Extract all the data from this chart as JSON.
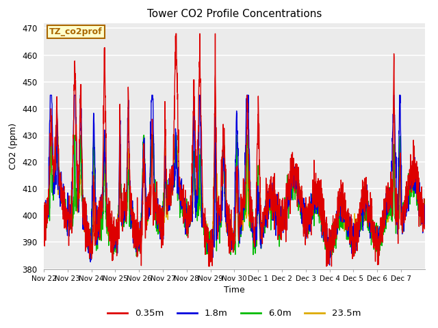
{
  "title": "Tower CO2 Profile Concentrations",
  "xlabel": "Time",
  "ylabel": "CO2 (ppm)",
  "ylim": [
    380,
    472
  ],
  "yticks": [
    380,
    390,
    400,
    410,
    420,
    430,
    440,
    450,
    460,
    470
  ],
  "series_labels": [
    "0.35m",
    "1.8m",
    "6.0m",
    "23.5m"
  ],
  "series_colors": [
    "#dd0000",
    "#0000dd",
    "#00bb00",
    "#ddaa00"
  ],
  "series_linewidths": [
    1.0,
    1.0,
    1.0,
    1.0
  ],
  "annotation_text": "TZ_co2prof",
  "annotation_color": "#aa6600",
  "annotation_bg": "#ffffcc",
  "bg_color": "#ffffff",
  "plot_bg": "#ebebeb",
  "stripe_color": "#d8d8d8",
  "xtick_labels": [
    "Nov 22",
    "Nov 23",
    "Nov 24",
    "Nov 25",
    "Nov 26",
    "Nov 27",
    "Nov 28",
    "Nov 29",
    "Nov 30",
    "Dec 1",
    "Dec 2",
    "Dec 3",
    "Dec 4",
    "Dec 5",
    "Dec 6",
    "Dec 7"
  ],
  "n_days": 16,
  "n_per_day": 144
}
